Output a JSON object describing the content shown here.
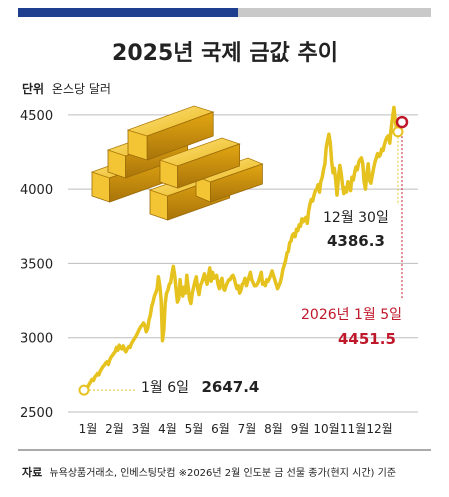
{
  "colors": {
    "header_blue": "#1e3f8f",
    "header_gray": "#c9c9c9",
    "line": "#e6c21f",
    "grid": "#bdbdbd",
    "text": "#222222",
    "red": "#c0182b"
  },
  "icon": "gold-bars-icon",
  "source": {
    "label": "자료",
    "text": "뉴욕상품거래소, 인베스팅닷컴 ※2026년 2월 인도분 금 선물 종가(현지 시간) 기준"
  },
  "chart_data": {
    "type": "line",
    "title": "2025년 국제 금값 추이",
    "unit_label": "단위",
    "unit": "온스당 달러",
    "ylim": [
      2500,
      4600
    ],
    "yticks": [
      2500,
      3000,
      3500,
      4000,
      4500
    ],
    "grid": true,
    "months": [
      "1월",
      "2월",
      "3월",
      "4월",
      "5월",
      "6월",
      "7월",
      "8월",
      "9월",
      "10월",
      "11월",
      "12월"
    ],
    "series": [
      {
        "values": [
          2647.4,
          2655,
          2668,
          2672,
          2690,
          2705,
          2720,
          2712,
          2735,
          2745,
          2760,
          2750,
          2775,
          2790,
          2805,
          2815,
          2830,
          2838,
          2820,
          2850,
          2870,
          2880,
          2895,
          2905,
          2935,
          2915,
          2950,
          2930,
          2925,
          2945,
          2920,
          2905,
          2925,
          2940,
          2935,
          2960,
          2975,
          2990,
          3005,
          3020,
          3040,
          3060,
          3075,
          3085,
          3100,
          3080,
          3040,
          3060,
          3120,
          3150,
          3210,
          3240,
          3280,
          3300,
          3330,
          3410,
          3350,
          3260,
          2980,
          3050,
          3230,
          3300,
          3320,
          3360,
          3370,
          3430,
          3480,
          3420,
          3330,
          3240,
          3260,
          3390,
          3310,
          3280,
          3340,
          3300,
          3420,
          3340,
          3260,
          3230,
          3300,
          3340,
          3380,
          3410,
          3330,
          3290,
          3350,
          3370,
          3400,
          3430,
          3390,
          3360,
          3420,
          3470,
          3380,
          3440,
          3400,
          3410,
          3420,
          3360,
          3330,
          3380,
          3400,
          3330,
          3320,
          3350,
          3370,
          3390,
          3390,
          3410,
          3420,
          3400,
          3360,
          3330,
          3350,
          3300,
          3320,
          3360,
          3370,
          3400,
          3350,
          3380,
          3410,
          3440,
          3390,
          3370,
          3350,
          3350,
          3360,
          3380,
          3410,
          3440,
          3360,
          3370,
          3350,
          3390,
          3380,
          3400,
          3420,
          3450,
          3420,
          3390,
          3360,
          3330,
          3350,
          3370,
          3410,
          3460,
          3490,
          3520,
          3570,
          3580,
          3640,
          3650,
          3690,
          3700,
          3680,
          3730,
          3720,
          3760,
          3750,
          3800,
          3780,
          3800,
          3810,
          3770,
          3850,
          3900,
          3930,
          3920,
          3960,
          3990,
          4000,
          4030,
          3980,
          4050,
          4080,
          4130,
          4170,
          4280,
          4330,
          4370,
          4310,
          4190,
          4110,
          4140,
          4060,
          3960,
          4080,
          4160,
          4110,
          4030,
          3970,
          4010,
          3980,
          4050,
          4020,
          3990,
          4080,
          4060,
          4110,
          4150,
          4130,
          4180,
          4200,
          4210,
          4170,
          4050,
          4000,
          4100,
          4170,
          4060,
          4040,
          4090,
          4140,
          4180,
          4210,
          4240,
          4220,
          4230,
          4270,
          4260,
          4300,
          4330,
          4350,
          4360,
          4310,
          4410,
          4480,
          4550,
          4470,
          4400,
          4386.3,
          4390,
          4430,
          4451.5
        ]
      }
    ],
    "annotations": [
      {
        "date": "1월 6일",
        "value": "2647.4"
      },
      {
        "date": "12월 30일",
        "value": "4386.3"
      },
      {
        "date": "2026년 1월 5일",
        "value": "4451.5"
      }
    ]
  }
}
